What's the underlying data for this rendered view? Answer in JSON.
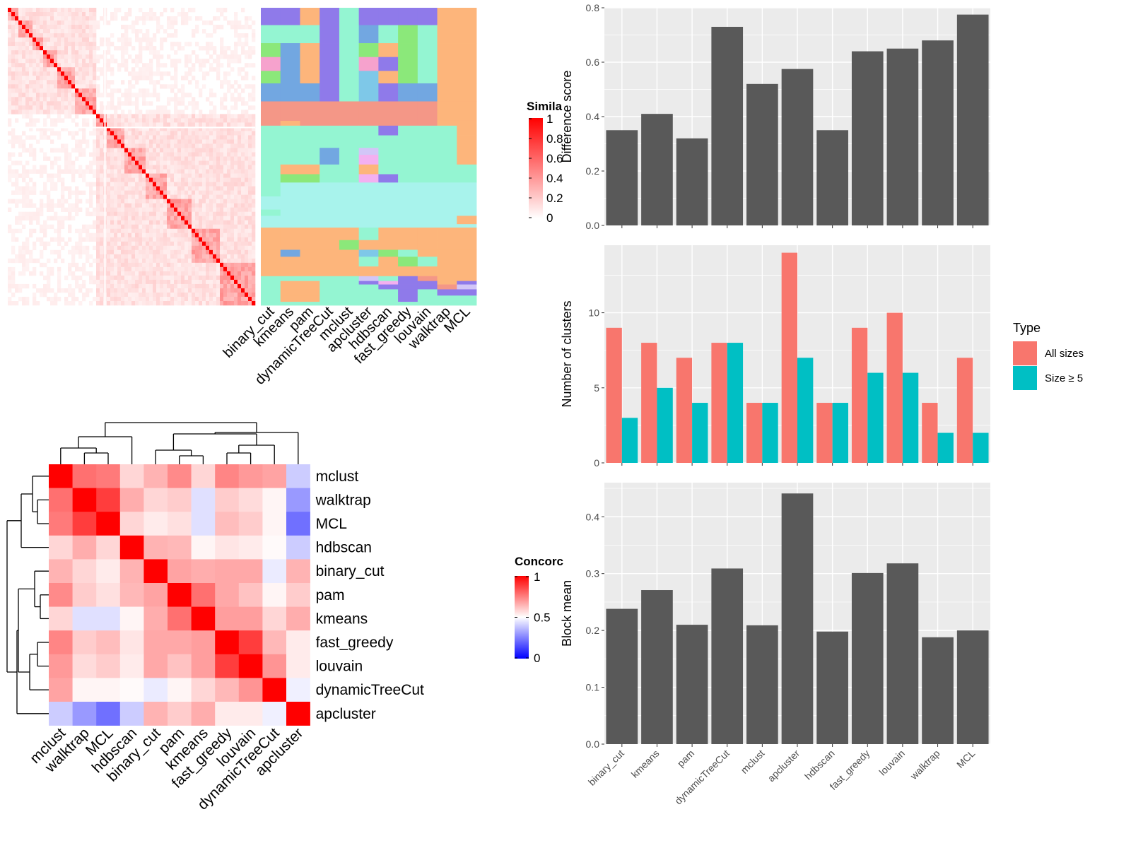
{
  "colors": {
    "panel_bg": "#EBEBEB",
    "grid": "#FFFFFF",
    "bar_dark": "#595959",
    "all_sizes": "#F8766D",
    "size_ge_5": "#00BFC4",
    "heat_high": "#FF0000",
    "heat_mid": "#FFFFFF",
    "heat_low": "#0000FF"
  },
  "top_left": {
    "column_labels": [
      "binary_cut",
      "kmeans",
      "pam",
      "dynamicTreeCut",
      "mclust",
      "apcluster",
      "hdbscan",
      "fast_greedy",
      "louvain",
      "walktrap",
      "MCL"
    ],
    "legend_title": "Simila",
    "legend_ticks": [
      "1",
      "0.8",
      "0.6",
      "0.4",
      "0.2",
      "0"
    ]
  },
  "concordance": {
    "legend_title": "Concorc",
    "legend_ticks": [
      "1",
      "0.5",
      "0"
    ],
    "labels": [
      "mclust",
      "walktrap",
      "MCL",
      "hdbscan",
      "binary_cut",
      "pam",
      "kmeans",
      "fast_greedy",
      "louvain",
      "dynamicTreeCut",
      "apcluster"
    ]
  },
  "chart_data": [
    {
      "type": "bar",
      "categories": [
        "binary_cut",
        "kmeans",
        "pam",
        "dynamicTreeCut",
        "mclust",
        "apcluster",
        "hdbscan",
        "fast_greedy",
        "louvain",
        "walktrap",
        "MCL"
      ],
      "values": [
        0.35,
        0.41,
        0.32,
        0.73,
        0.52,
        0.575,
        0.35,
        0.64,
        0.65,
        0.68,
        0.775
      ],
      "ylabel": "Difference score",
      "ylim": [
        0,
        0.8
      ],
      "yticks": [
        "0.0",
        "0.2",
        "0.4",
        "0.6",
        "0.8"
      ],
      "grid": true
    },
    {
      "type": "bar",
      "categories": [
        "binary_cut",
        "kmeans",
        "pam",
        "dynamicTreeCut",
        "mclust",
        "apcluster",
        "hdbscan",
        "fast_greedy",
        "louvain",
        "walktrap",
        "MCL"
      ],
      "series": [
        {
          "name": "All sizes",
          "values": [
            9,
            8,
            7,
            8,
            4,
            14,
            4,
            9,
            10,
            4,
            7
          ]
        },
        {
          "name": "Size ≥ 5",
          "values": [
            3,
            5,
            4,
            8,
            4,
            7,
            4,
            6,
            6,
            2,
            2
          ]
        }
      ],
      "ylabel": "Number of clusters",
      "ylim": [
        0,
        14.5
      ],
      "yticks": [
        "0",
        "5",
        "10"
      ],
      "legend_title": "Type",
      "legend_position": "right",
      "grid": true
    },
    {
      "type": "bar",
      "categories": [
        "binary_cut",
        "kmeans",
        "pam",
        "dynamicTreeCut",
        "mclust",
        "apcluster",
        "hdbscan",
        "fast_greedy",
        "louvain",
        "walktrap",
        "MCL"
      ],
      "values": [
        0.238,
        0.271,
        0.21,
        0.309,
        0.209,
        0.441,
        0.198,
        0.301,
        0.318,
        0.188,
        0.2
      ],
      "ylabel": "Block mean",
      "ylim": [
        0,
        0.46
      ],
      "yticks": [
        "0.0",
        "0.1",
        "0.2",
        "0.3",
        "0.4"
      ],
      "grid": true
    },
    {
      "type": "heatmap",
      "rows": [
        "mclust",
        "walktrap",
        "MCL",
        "hdbscan",
        "binary_cut",
        "pam",
        "kmeans",
        "fast_greedy",
        "louvain",
        "dynamicTreeCut",
        "apcluster"
      ],
      "columns": [
        "mclust",
        "walktrap",
        "MCL",
        "hdbscan",
        "binary_cut",
        "pam",
        "kmeans",
        "fast_greedy",
        "louvain",
        "dynamicTreeCut",
        "apcluster"
      ],
      "values": [
        [
          1.0,
          0.78,
          0.76,
          0.58,
          0.65,
          0.73,
          0.58,
          0.74,
          0.7,
          0.68,
          0.4
        ],
        [
          0.78,
          1.0,
          0.88,
          0.66,
          0.58,
          0.6,
          0.44,
          0.6,
          0.57,
          0.52,
          0.3
        ],
        [
          0.76,
          0.88,
          1.0,
          0.58,
          0.54,
          0.56,
          0.44,
          0.63,
          0.6,
          0.52,
          0.22
        ],
        [
          0.58,
          0.66,
          0.58,
          1.0,
          0.65,
          0.64,
          0.52,
          0.55,
          0.54,
          0.51,
          0.4
        ],
        [
          0.65,
          0.58,
          0.54,
          0.65,
          1.0,
          0.68,
          0.66,
          0.67,
          0.67,
          0.46,
          0.65
        ],
        [
          0.73,
          0.6,
          0.56,
          0.64,
          0.68,
          1.0,
          0.78,
          0.67,
          0.62,
          0.52,
          0.6
        ],
        [
          0.58,
          0.44,
          0.44,
          0.52,
          0.66,
          0.78,
          1.0,
          0.69,
          0.69,
          0.58,
          0.66
        ],
        [
          0.74,
          0.6,
          0.63,
          0.55,
          0.67,
          0.67,
          0.69,
          1.0,
          0.88,
          0.64,
          0.54
        ],
        [
          0.7,
          0.57,
          0.6,
          0.54,
          0.67,
          0.62,
          0.69,
          0.88,
          1.0,
          0.71,
          0.54
        ],
        [
          0.68,
          0.52,
          0.52,
          0.51,
          0.46,
          0.52,
          0.58,
          0.64,
          0.71,
          1.0,
          0.47
        ],
        [
          0.4,
          0.3,
          0.22,
          0.4,
          0.65,
          0.6,
          0.66,
          0.54,
          0.54,
          0.47,
          1.0
        ]
      ],
      "legend_title": "Concorc",
      "zlim": [
        0,
        1
      ]
    }
  ]
}
